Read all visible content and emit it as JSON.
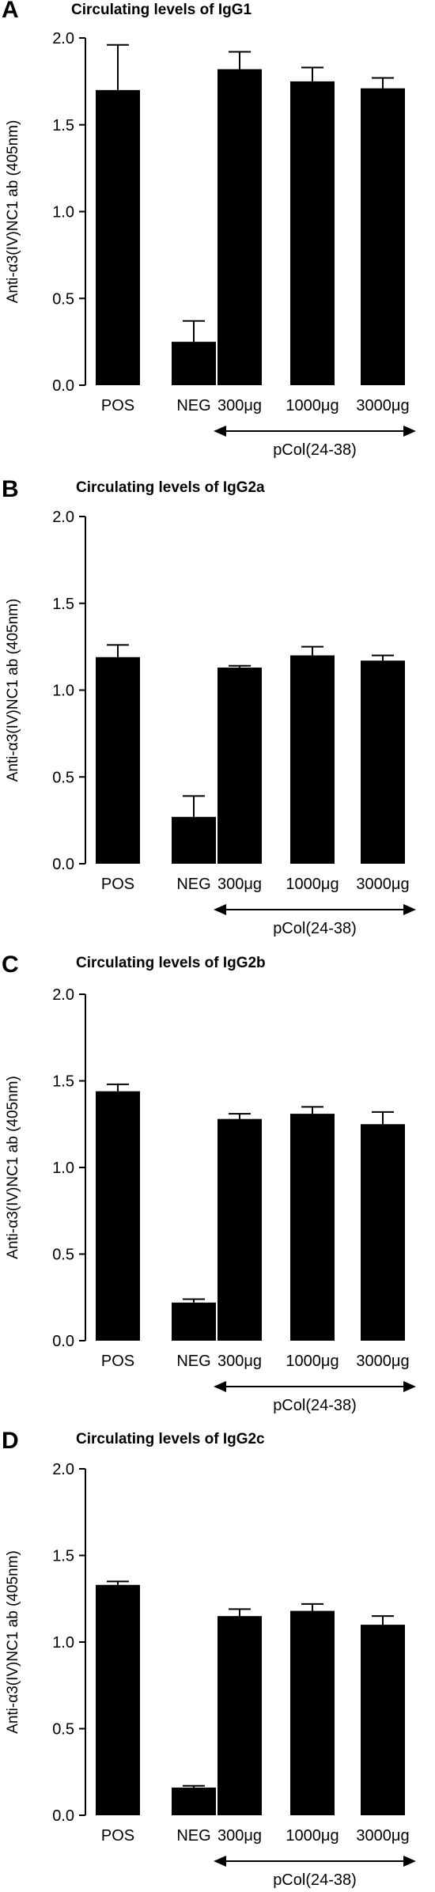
{
  "chart_data": [
    {
      "panel": "A",
      "type": "bar",
      "title": "Circulating levels of IgG1",
      "ylabel": "Anti-α3(IV)NC1 ab (405nm)",
      "xlabel": "",
      "ylim": [
        0,
        2.0
      ],
      "yticks": [
        "0.0",
        "0.5",
        "1.0",
        "1.5",
        "2.0"
      ],
      "categories": [
        "POS",
        "NEG",
        "300μg",
        "1000μg",
        "3000μg"
      ],
      "values": [
        1.7,
        0.25,
        1.82,
        1.75,
        1.71
      ],
      "errors": [
        0.26,
        0.12,
        0.1,
        0.08,
        0.06
      ],
      "bracket_label": "pCol(24-38)"
    },
    {
      "panel": "B",
      "type": "bar",
      "title": "Circulating levels of IgG2a",
      "ylabel": "Anti-α3(IV)NC1 ab (405nm)",
      "xlabel": "",
      "ylim": [
        0,
        2.0
      ],
      "yticks": [
        "0.0",
        "0.5",
        "1.0",
        "1.5",
        "2.0"
      ],
      "categories": [
        "POS",
        "NEG",
        "300μg",
        "1000μg",
        "3000μg"
      ],
      "values": [
        1.19,
        0.27,
        1.13,
        1.2,
        1.17
      ],
      "errors": [
        0.07,
        0.12,
        0.01,
        0.05,
        0.03
      ],
      "bracket_label": "pCol(24-38)"
    },
    {
      "panel": "C",
      "type": "bar",
      "title": "Circulating levels of IgG2b",
      "ylabel": "Anti-α3(IV)NC1 ab (405nm)",
      "xlabel": "",
      "ylim": [
        0,
        2.0
      ],
      "yticks": [
        "0.0",
        "0.5",
        "1.0",
        "1.5",
        "2.0"
      ],
      "categories": [
        "POS",
        "NEG",
        "300μg",
        "1000μg",
        "3000μg"
      ],
      "values": [
        1.44,
        0.22,
        1.28,
        1.31,
        1.25
      ],
      "errors": [
        0.04,
        0.02,
        0.03,
        0.04,
        0.07
      ],
      "bracket_label": "pCol(24-38)"
    },
    {
      "panel": "D",
      "type": "bar",
      "title": "Circulating levels of IgG2c",
      "ylabel": "Anti-α3(IV)NC1 ab (405nm)",
      "xlabel": "",
      "ylim": [
        0,
        2.0
      ],
      "yticks": [
        "0.0",
        "0.5",
        "1.0",
        "1.5",
        "2.0"
      ],
      "categories": [
        "POS",
        "NEG",
        "300μg",
        "1000μg",
        "3000μg"
      ],
      "values": [
        1.33,
        0.16,
        1.15,
        1.18,
        1.1
      ],
      "errors": [
        0.02,
        0.01,
        0.04,
        0.04,
        0.05
      ],
      "bracket_label": "pCol(24-38)"
    }
  ]
}
